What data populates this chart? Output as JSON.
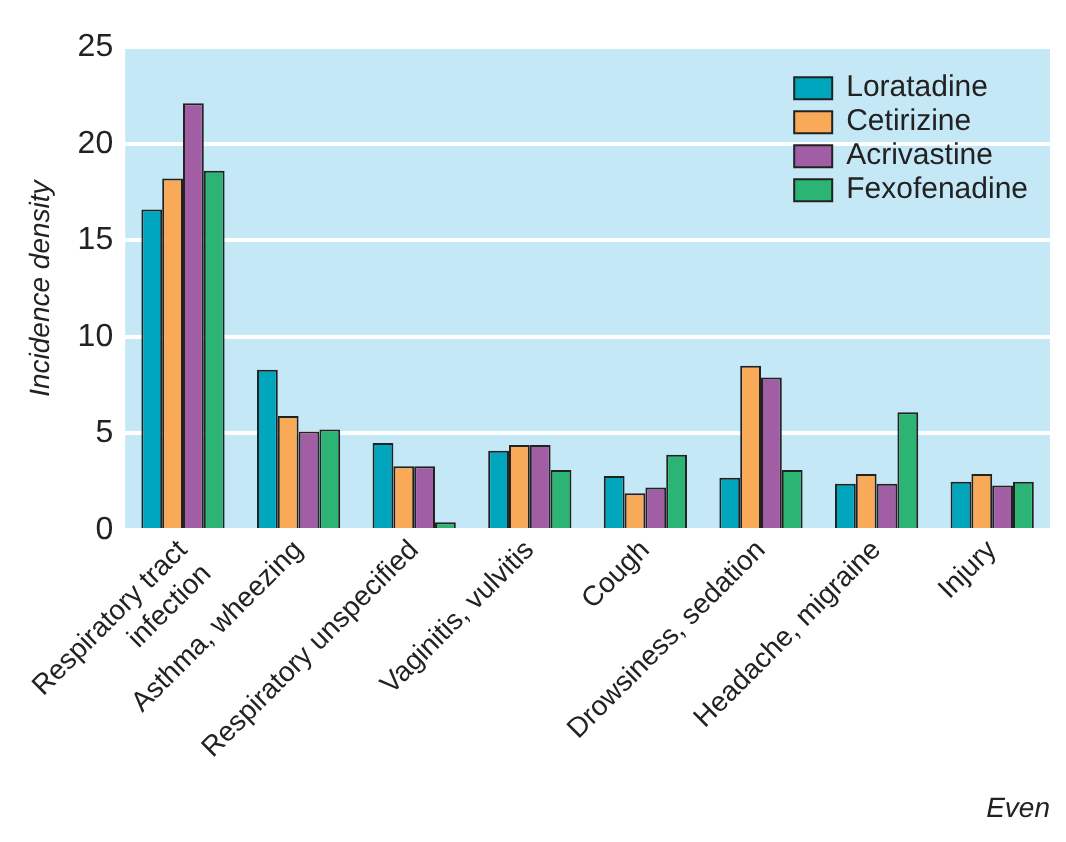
{
  "chart_data": {
    "type": "bar",
    "xlabel": "Even",
    "ylabel": "Incidence density",
    "categories": [
      "Respiratory tract\ninfection",
      "Asthma, wheezing",
      "Respiratory unspecified",
      "Vaginitis, vulvitis",
      "Cough",
      "Drowsiness, sedation",
      "Headache, migraine",
      "Injury"
    ],
    "series": [
      {
        "name": "Loratadine",
        "color": "#00a6be",
        "values": [
          16.6,
          8.3,
          4.5,
          4.1,
          2.8,
          2.7,
          2.4,
          2.5
        ]
      },
      {
        "name": "Cetirizine",
        "color": "#f9aa58",
        "values": [
          18.2,
          5.9,
          3.3,
          4.4,
          1.9,
          8.5,
          2.9,
          2.9
        ]
      },
      {
        "name": "Acrivastine",
        "color": "#a25ea4",
        "values": [
          22.1,
          5.1,
          3.3,
          4.4,
          2.2,
          7.9,
          2.4,
          2.3
        ]
      },
      {
        "name": "Fexofenadine",
        "color": "#2bb473",
        "values": [
          18.6,
          5.2,
          0.4,
          3.1,
          3.9,
          3.1,
          6.1,
          2.5
        ]
      }
    ],
    "ylim": [
      0,
      25
    ],
    "yticks": [
      0,
      5,
      10,
      15,
      20,
      25
    ],
    "grid": "y",
    "legend": "top right"
  }
}
